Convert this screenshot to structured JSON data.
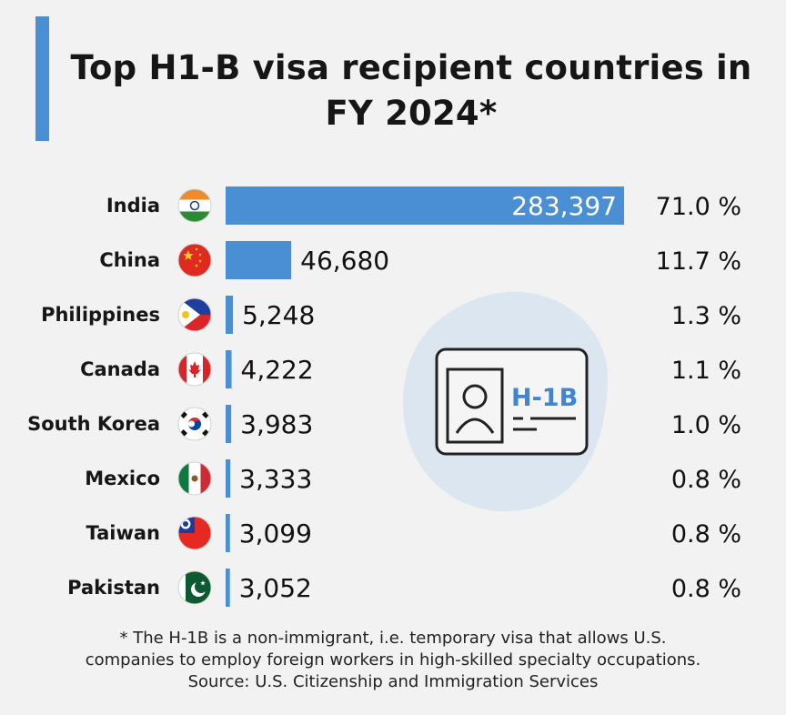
{
  "title": "Top H1-B visa recipient countries in FY 2024*",
  "colors": {
    "accent": "#4a8fd4",
    "bar": "#4a8fd4",
    "badge_bg": "#dbe6f1"
  },
  "illustration": {
    "icon": "id-card-icon",
    "text": "H-1B"
  },
  "chart_data": {
    "type": "bar",
    "orientation": "horizontal",
    "title": "Top H1-B visa recipient countries in FY 2024*",
    "categories": [
      "India",
      "China",
      "Philippines",
      "Canada",
      "South Korea",
      "Mexico",
      "Taiwan",
      "Pakistan"
    ],
    "values": [
      283397,
      46680,
      5248,
      4222,
      3983,
      3333,
      3099,
      3052
    ],
    "value_labels": [
      "283,397",
      "46,680",
      "5,248",
      "4,222",
      "3,983",
      "3,333",
      "3,099",
      "3,052"
    ],
    "percent_labels": [
      "71.0 %",
      "11.7 %",
      "1.3 %",
      "1.1 %",
      "1.0 %",
      "0.8 %",
      "0.8 %",
      "0.8 %"
    ],
    "flags": [
      "india-flag-icon",
      "china-flag-icon",
      "philippines-flag-icon",
      "canada-flag-icon",
      "south-korea-flag-icon",
      "mexico-flag-icon",
      "taiwan-flag-icon",
      "pakistan-flag-icon"
    ],
    "xlim": [
      0,
      283397
    ],
    "grid": false,
    "legend": "none"
  },
  "footnote": {
    "line1": "* The H-1B is a non-immigrant, i.e. temporary visa that allows U.S.",
    "line2": "companies to employ foreign workers in high-skilled specialty occupations.",
    "line3": "Source: U.S. Citizenship and Immigration Services"
  }
}
